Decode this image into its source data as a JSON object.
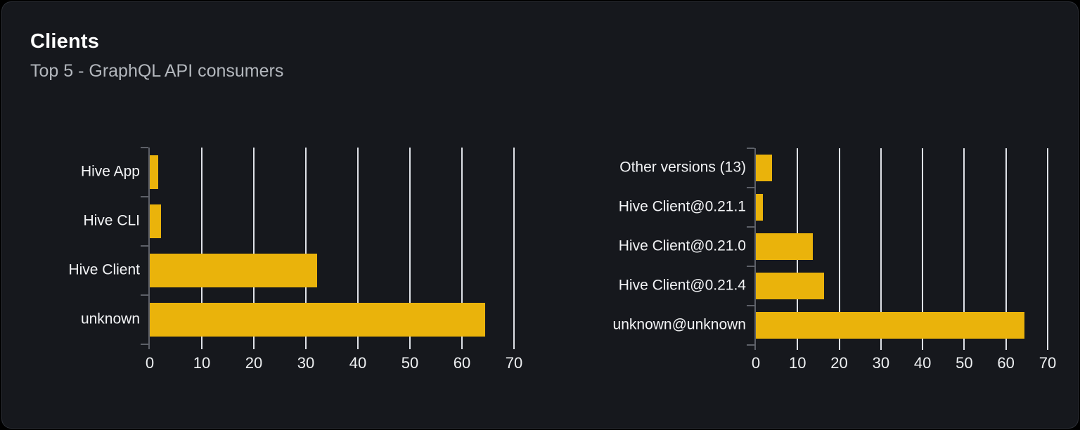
{
  "header": {
    "title": "Clients",
    "subtitle": "Top 5 - GraphQL API consumers"
  },
  "colors": {
    "bar": "#eab30b",
    "card_background": "#16181d",
    "card_border": "#2c2f36",
    "gridline": "#dfe2e8",
    "axis": "#5d6068",
    "title_text": "#ffffff",
    "subtitle_text": "#b3b7bd",
    "label_text": "#f2f3f5"
  },
  "chart_data": [
    {
      "type": "bar",
      "orientation": "horizontal",
      "categories": [
        "Hive App",
        "Hive CLI",
        "Hive Client",
        "unknown"
      ],
      "values": [
        1.6,
        2.2,
        32.2,
        64.4
      ],
      "xticks": [
        0,
        10,
        20,
        30,
        40,
        50,
        60,
        70
      ],
      "xlim": [
        0,
        70
      ],
      "grid": true,
      "legend": "none"
    },
    {
      "type": "bar",
      "orientation": "horizontal",
      "categories": [
        "Other versions (13)",
        "Hive Client@0.21.1",
        "Hive Client@0.21.0",
        "Hive Client@0.21.4",
        "unknown@unknown"
      ],
      "values": [
        3.9,
        1.7,
        13.7,
        16.4,
        64.4
      ],
      "xticks": [
        0,
        10,
        20,
        30,
        40,
        50,
        60,
        70
      ],
      "xlim": [
        0,
        70
      ],
      "grid": true,
      "legend": "none"
    }
  ]
}
